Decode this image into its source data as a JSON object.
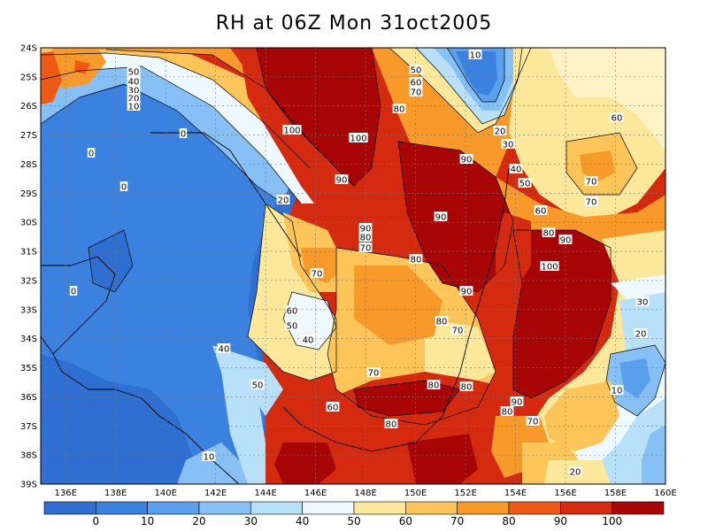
{
  "title": "RH at 06Z Mon 31oct2005",
  "map": {
    "lat_labels": [
      "24S",
      "25S",
      "26S",
      "27S",
      "28S",
      "29S",
      "30S",
      "31S",
      "32S",
      "33S",
      "34S",
      "35S",
      "36S",
      "37S",
      "38S",
      "39S"
    ],
    "lon_labels": [
      "136E",
      "138E",
      "140E",
      "142E",
      "144E",
      "146E",
      "148E",
      "150E",
      "152E",
      "154E",
      "156E",
      "158E",
      "160E"
    ]
  },
  "colorbar": {
    "colors": [
      "#2e6fd1",
      "#3b82e0",
      "#5aa0ec",
      "#87c0f4",
      "#b8e0f8",
      "#eef8ff",
      "#fbe89a",
      "#fbc55a",
      "#f89a2a",
      "#ee5a14",
      "#d42a10",
      "#a80606"
    ],
    "tick_labels": [
      "0",
      "10",
      "20",
      "30",
      "40",
      "50",
      "60",
      "70",
      "80",
      "90",
      "100"
    ]
  },
  "contour_labels": [
    {
      "t": "10"
    },
    {
      "t": "50"
    },
    {
      "t": "40"
    },
    {
      "t": "30"
    },
    {
      "t": "20"
    },
    {
      "t": "10"
    },
    {
      "t": "0"
    },
    {
      "t": "0"
    },
    {
      "t": "0"
    },
    {
      "t": "0"
    },
    {
      "t": "20"
    },
    {
      "t": "100"
    },
    {
      "t": "100"
    },
    {
      "t": "90"
    },
    {
      "t": "50"
    },
    {
      "t": "60"
    },
    {
      "t": "70"
    },
    {
      "t": "80"
    },
    {
      "t": "20"
    },
    {
      "t": "30"
    },
    {
      "t": "60"
    },
    {
      "t": "90"
    },
    {
      "t": "40"
    },
    {
      "t": "50"
    },
    {
      "t": "70"
    },
    {
      "t": "70"
    },
    {
      "t": "60"
    },
    {
      "t": "90"
    },
    {
      "t": "80"
    },
    {
      "t": "70"
    },
    {
      "t": "90"
    },
    {
      "t": "80"
    },
    {
      "t": "80"
    },
    {
      "t": "90"
    },
    {
      "t": "100"
    },
    {
      "t": "70"
    },
    {
      "t": "90"
    },
    {
      "t": "60"
    },
    {
      "t": "50"
    },
    {
      "t": "40"
    },
    {
      "t": "80"
    },
    {
      "t": "70"
    },
    {
      "t": "40"
    },
    {
      "t": "70"
    },
    {
      "t": "50"
    },
    {
      "t": "80"
    },
    {
      "t": "80"
    },
    {
      "t": "60"
    },
    {
      "t": "90"
    },
    {
      "t": "80"
    },
    {
      "t": "70"
    },
    {
      "t": "30"
    },
    {
      "t": "20"
    },
    {
      "t": "10"
    },
    {
      "t": "20"
    },
    {
      "t": "10"
    },
    {
      "t": "80"
    }
  ]
}
